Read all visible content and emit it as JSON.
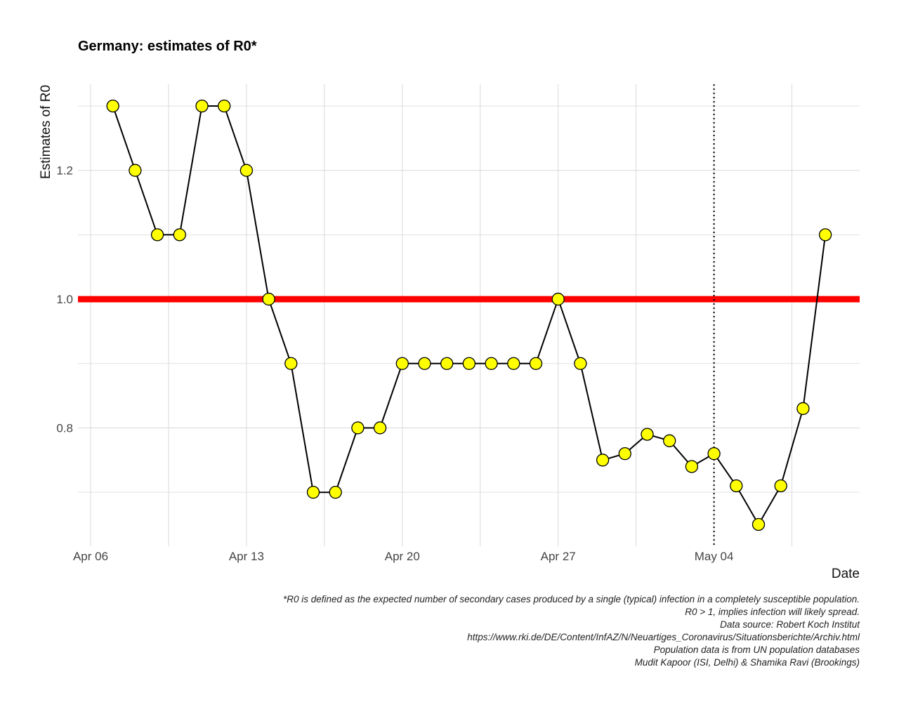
{
  "chart_data": {
    "type": "line",
    "title": "Germany: estimates of R0*",
    "xlabel": "Date",
    "ylabel": "Estimates of R0",
    "x_type": "date",
    "x_ticks": [
      "Apr 06",
      "Apr 13",
      "Apr 20",
      "Apr 27",
      "May 04"
    ],
    "y_ticks": [
      "0.8",
      "1.0",
      "1.2"
    ],
    "ylim": [
      0.625,
      1.325
    ],
    "xlim": [
      "2020-04-06",
      "2020-05-11"
    ],
    "grid": true,
    "series": [
      {
        "x": [
          "2020-04-07",
          "2020-04-08",
          "2020-04-09",
          "2020-04-10",
          "2020-04-11",
          "2020-04-12",
          "2020-04-13",
          "2020-04-14",
          "2020-04-15",
          "2020-04-16",
          "2020-04-17",
          "2020-04-18",
          "2020-04-19",
          "2020-04-20",
          "2020-04-21",
          "2020-04-22",
          "2020-04-23",
          "2020-04-24",
          "2020-04-25",
          "2020-04-26",
          "2020-04-27",
          "2020-04-28",
          "2020-04-29",
          "2020-04-30",
          "2020-05-01",
          "2020-05-02",
          "2020-05-03",
          "2020-05-04",
          "2020-05-05",
          "2020-05-06",
          "2020-05-07",
          "2020-05-08",
          "2020-05-09"
        ],
        "values": [
          1.3,
          1.2,
          1.1,
          1.1,
          1.3,
          1.3,
          1.2,
          1.0,
          0.9,
          0.7,
          0.7,
          0.8,
          0.8,
          0.9,
          0.9,
          0.9,
          0.9,
          0.9,
          0.9,
          0.9,
          1.0,
          0.9,
          0.75,
          0.76,
          0.79,
          0.78,
          0.74,
          0.76,
          0.71,
          0.65,
          0.71,
          0.83,
          1.1
        ]
      }
    ],
    "reference_line": {
      "y": 1.0,
      "color": "#ff0000"
    },
    "vertical_line": {
      "x": "2020-05-04",
      "style": "dotted"
    },
    "colors": {
      "line": "#000000",
      "marker_fill": "#ffff00",
      "marker_stroke": "#000000",
      "grid": "#d9d9d9"
    }
  },
  "caption": [
    "*R0 is defined as the expected number of secondary cases produced by a single (typical) infection in a completely susceptible population.",
    "R0 > 1, implies infection will likely spread.",
    "Data source: Robert Koch Institut",
    "https://www.rki.de/DE/Content/InfAZ/N/Neuartiges_Coronavirus/Situationsberichte/Archiv.html",
    "Population data is from UN population databases",
    "Mudit Kapoor (ISI, Delhi) & Shamika Ravi (Brookings)"
  ]
}
